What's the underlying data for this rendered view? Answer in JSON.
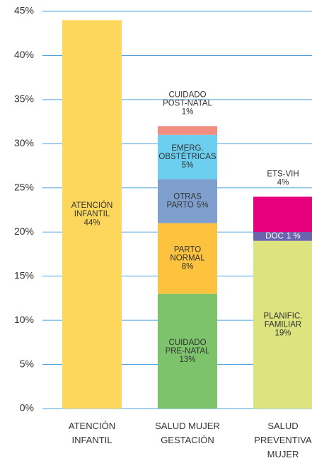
{
  "chart_data": {
    "type": "stacked_bar",
    "ylim": [
      0,
      45
    ],
    "yticks": [
      {
        "value": 0,
        "label": "0%"
      },
      {
        "value": 5,
        "label": "5%"
      },
      {
        "value": 10,
        "label": "10%"
      },
      {
        "value": 15,
        "label": "15%"
      },
      {
        "value": 20,
        "label": "20%"
      },
      {
        "value": 25,
        "label": "25%"
      },
      {
        "value": 30,
        "label": "30%"
      },
      {
        "value": 35,
        "label": "35%"
      },
      {
        "value": 40,
        "label": "40%"
      },
      {
        "value": 45,
        "label": "45%"
      }
    ],
    "grid": true,
    "grid_color": "#4da3e0",
    "categories": [
      "ATENCIÓN\nINFANTIL",
      "SALUD MUJER\nGESTACIÓN",
      "SALUD\nPREVENTIVA\nMUJER"
    ],
    "stacks": [
      [
        {
          "name": "ATENCIÓN\nINFANTIL",
          "value": 44,
          "value_label": "44%",
          "color": "#fdd75c"
        }
      ],
      [
        {
          "name": "CUIDADO\nPRE-NATAL",
          "value": 13,
          "value_label": "13%",
          "color": "#7dc36b"
        },
        {
          "name": "PARTO\nNORMAL",
          "value": 8,
          "value_label": "8%",
          "color": "#fdc23e"
        },
        {
          "name": "OTRAS\nPARTO",
          "value": 5,
          "value_label": "5%",
          "color": "#7f9fcf"
        },
        {
          "name": "EMERG.\nOBSTÉTRICAS",
          "value": 5,
          "value_label": "5%",
          "color": "#6ccff0"
        },
        {
          "name": "CUIDADO\nPOST-NATAL",
          "value": 1,
          "value_label": "1%",
          "color": "#f28e80"
        }
      ],
      [
        {
          "name": "PLANIFIC.\nFAMILIAR",
          "value": 19,
          "value_label": "19%",
          "color": "#dde37f"
        },
        {
          "name": "DOC",
          "value": 1,
          "value_label": "1 %",
          "color": "#6a63ae"
        },
        {
          "name": "ETS-VIH",
          "value": 4,
          "value_label": "4%",
          "color": "#e6007e"
        }
      ]
    ]
  }
}
